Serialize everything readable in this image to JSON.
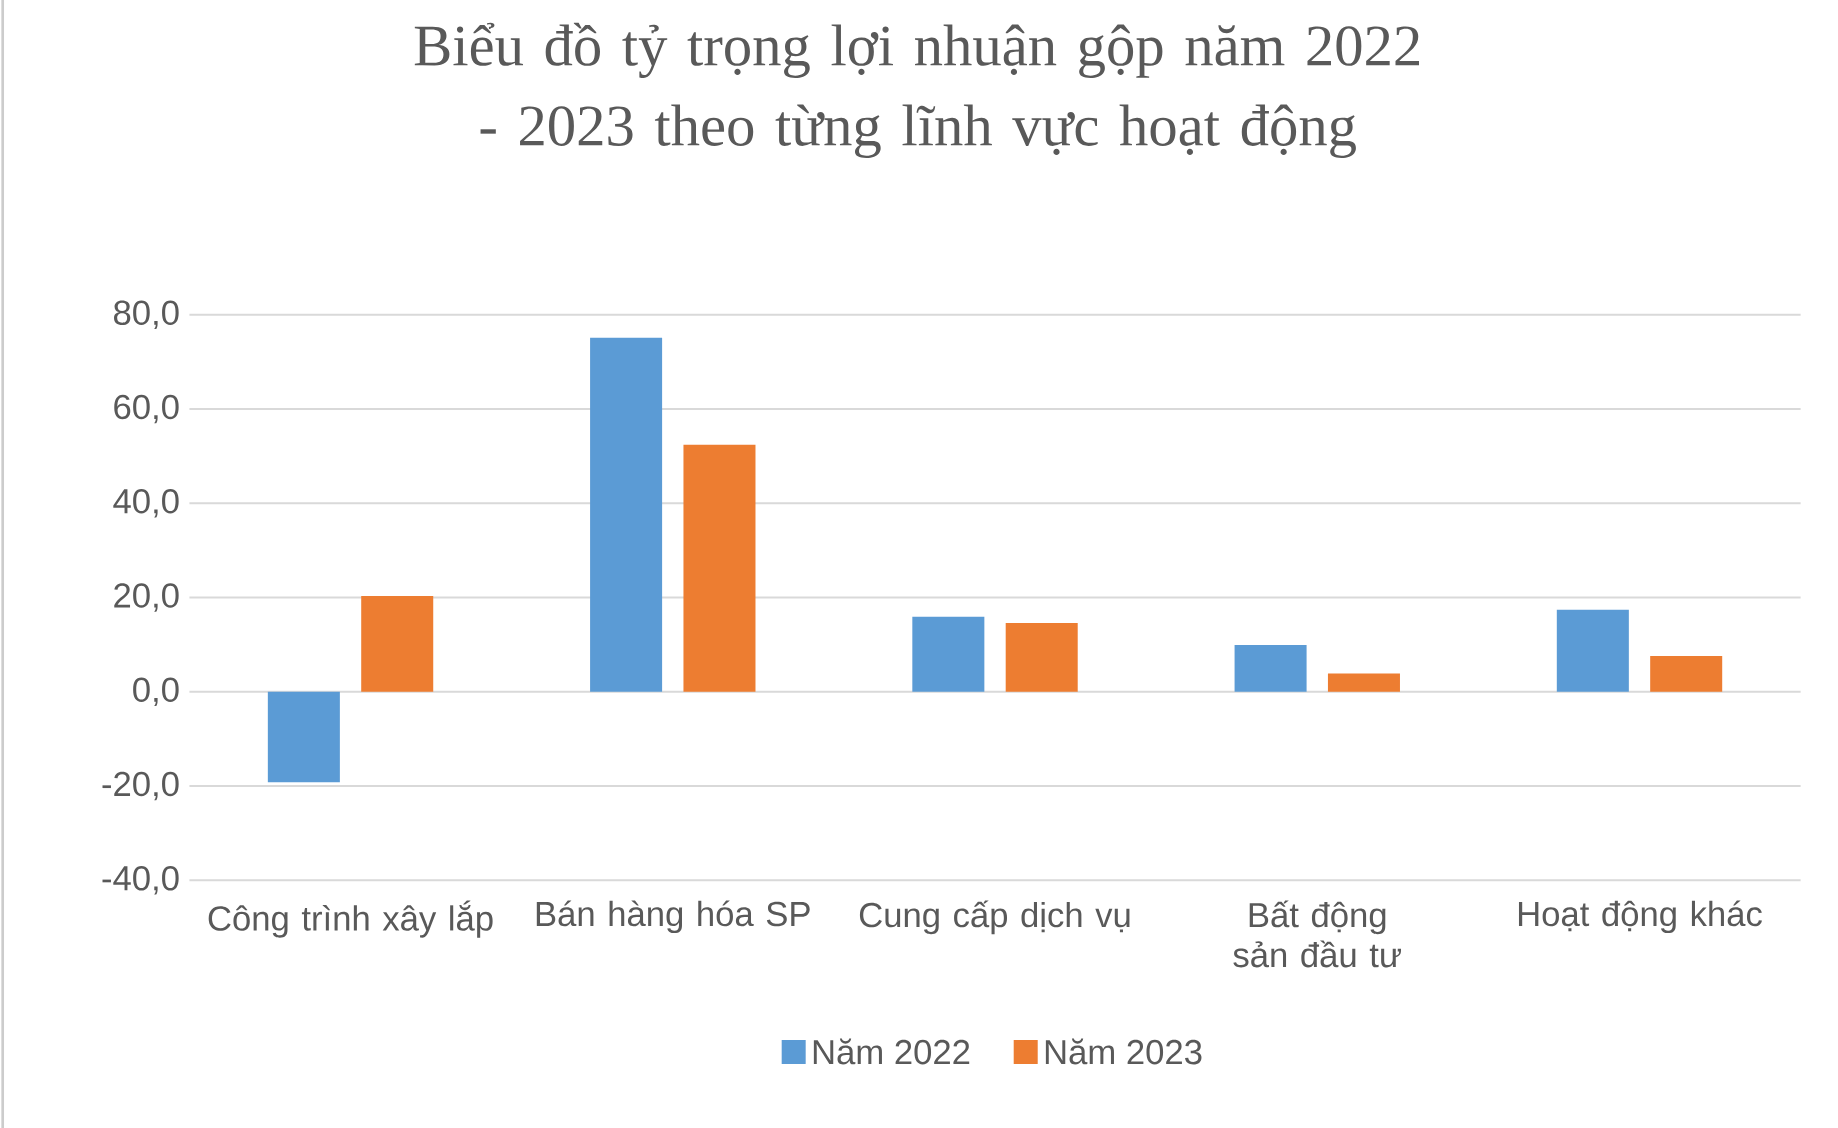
{
  "chart_data": {
    "type": "bar",
    "title": "Biểu đồ tỷ trọng lợi nhuận gộp năm 2022 - 2023 theo từng lĩnh vực hoạt động",
    "categories": [
      "Công trình xây lắp",
      "Bán hàng hóa SP",
      "Cung cấp dịch vụ",
      "Bất động sản đầu tư",
      "Hoạt động khác"
    ],
    "series": [
      {
        "name": "Năm 2022",
        "color": "#5b9bd5",
        "values": [
          -19.2,
          75.1,
          15.9,
          9.9,
          17.4
        ]
      },
      {
        "name": "Năm 2023",
        "color": "#ed7d31",
        "values": [
          20.3,
          52.4,
          14.6,
          3.9,
          7.6
        ]
      }
    ],
    "ylim": [
      -40,
      80
    ],
    "yticks": [
      {
        "value": -40,
        "label": "-40,0"
      },
      {
        "value": -20,
        "label": "-20,0"
      },
      {
        "value": 0,
        "label": "0,0"
      },
      {
        "value": 20,
        "label": "20,0"
      },
      {
        "value": 40,
        "label": "40,0"
      },
      {
        "value": 60,
        "label": "60,0"
      },
      {
        "value": 80,
        "label": "80,0"
      }
    ],
    "grid": "y",
    "legend": "bottom"
  }
}
